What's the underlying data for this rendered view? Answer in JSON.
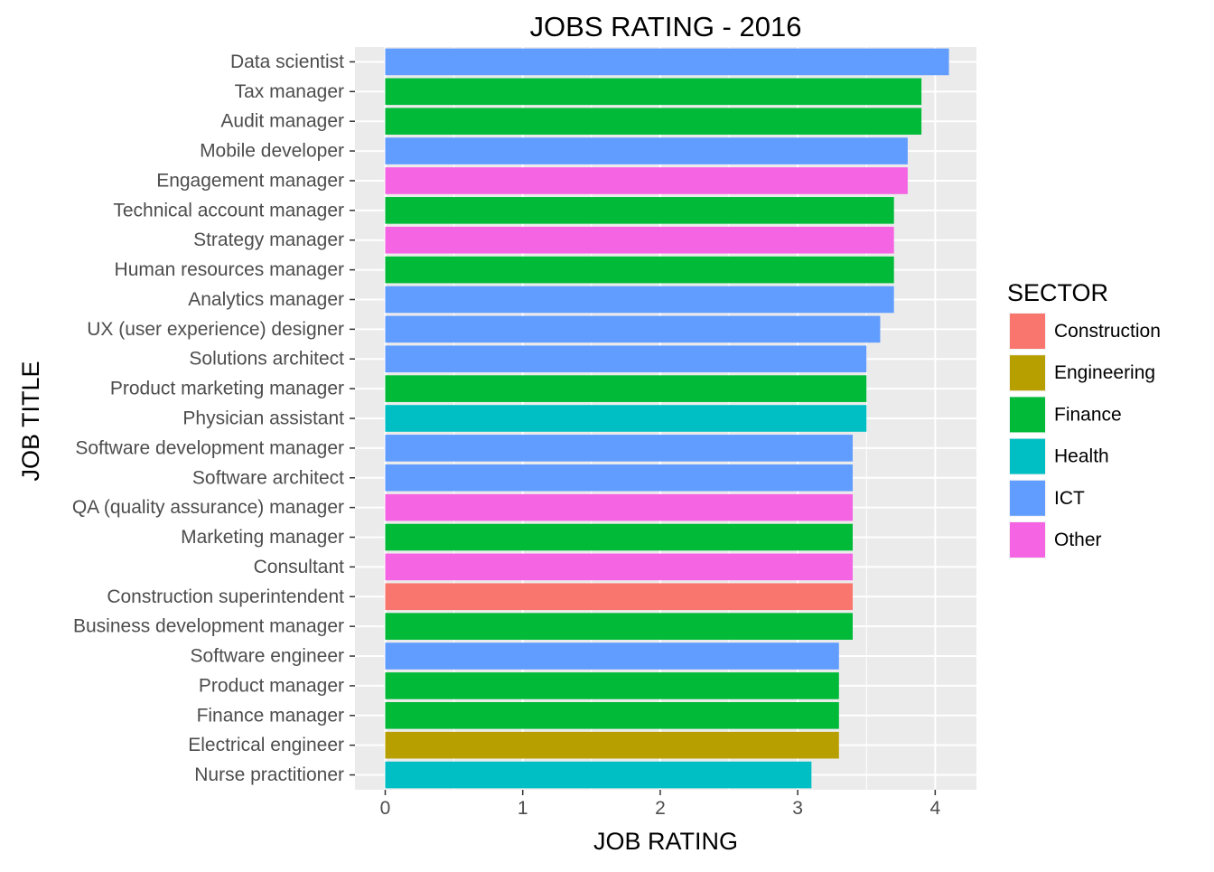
{
  "chart_data": {
    "type": "bar",
    "orientation": "horizontal",
    "title": "JOBS RATING - 2016",
    "xlabel": "JOB RATING",
    "ylabel": "JOB TITLE",
    "xlim": [
      -0.22,
      4.3
    ],
    "xticks": [
      0,
      1,
      2,
      3,
      4
    ],
    "grid": true,
    "legend_title": "SECTOR",
    "legend_position": "right",
    "sectors": [
      {
        "name": "Construction",
        "color": "#F8766D"
      },
      {
        "name": "Engineering",
        "color": "#B79F00"
      },
      {
        "name": "Finance",
        "color": "#00BA38"
      },
      {
        "name": "Health",
        "color": "#00BFC4"
      },
      {
        "name": "ICT",
        "color": "#619CFF"
      },
      {
        "name": "Other",
        "color": "#F564E3"
      }
    ],
    "bars": [
      {
        "job": "Data scientist",
        "rating": 4.1,
        "sector": "ICT"
      },
      {
        "job": "Tax manager",
        "rating": 3.9,
        "sector": "Finance"
      },
      {
        "job": "Audit manager",
        "rating": 3.9,
        "sector": "Finance"
      },
      {
        "job": "Mobile developer",
        "rating": 3.8,
        "sector": "ICT"
      },
      {
        "job": "Engagement manager",
        "rating": 3.8,
        "sector": "Other"
      },
      {
        "job": "Technical account manager",
        "rating": 3.7,
        "sector": "Finance"
      },
      {
        "job": "Strategy manager",
        "rating": 3.7,
        "sector": "Other"
      },
      {
        "job": "Human resources manager",
        "rating": 3.7,
        "sector": "Finance"
      },
      {
        "job": "Analytics manager",
        "rating": 3.7,
        "sector": "ICT"
      },
      {
        "job": "UX (user experience) designer",
        "rating": 3.6,
        "sector": "ICT"
      },
      {
        "job": "Solutions architect",
        "rating": 3.5,
        "sector": "ICT"
      },
      {
        "job": "Product marketing manager",
        "rating": 3.5,
        "sector": "Finance"
      },
      {
        "job": "Physician assistant",
        "rating": 3.5,
        "sector": "Health"
      },
      {
        "job": "Software development manager",
        "rating": 3.4,
        "sector": "ICT"
      },
      {
        "job": "Software architect",
        "rating": 3.4,
        "sector": "ICT"
      },
      {
        "job": "QA (quality assurance) manager",
        "rating": 3.4,
        "sector": "Other"
      },
      {
        "job": "Marketing manager",
        "rating": 3.4,
        "sector": "Finance"
      },
      {
        "job": "Consultant",
        "rating": 3.4,
        "sector": "Other"
      },
      {
        "job": "Construction superintendent",
        "rating": 3.4,
        "sector": "Construction"
      },
      {
        "job": "Business development manager",
        "rating": 3.4,
        "sector": "Finance"
      },
      {
        "job": "Software engineer",
        "rating": 3.3,
        "sector": "ICT"
      },
      {
        "job": "Product manager",
        "rating": 3.3,
        "sector": "Finance"
      },
      {
        "job": "Finance manager",
        "rating": 3.3,
        "sector": "Finance"
      },
      {
        "job": "Electrical engineer",
        "rating": 3.3,
        "sector": "Engineering"
      },
      {
        "job": "Nurse practitioner",
        "rating": 3.1,
        "sector": "Health"
      }
    ]
  }
}
